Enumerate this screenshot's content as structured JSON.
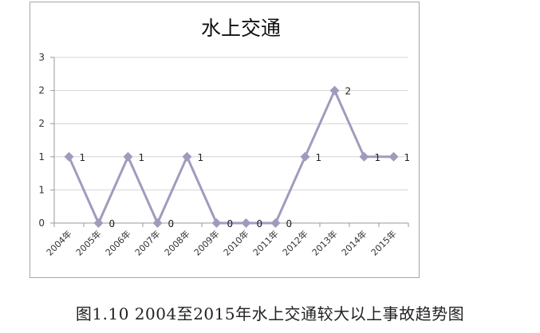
{
  "chart_data": {
    "type": "line",
    "title": "水上交通",
    "categories": [
      "2004年",
      "2005年",
      "2006年",
      "2007年",
      "2008年",
      "2009年",
      "2010年",
      "2011年",
      "2012年",
      "2013年",
      "2014年",
      "2015年"
    ],
    "values": [
      1,
      0,
      1,
      0,
      1,
      0,
      0,
      0,
      1,
      2,
      1,
      1
    ],
    "data_labels": [
      "1",
      "0",
      "1",
      "0",
      "1",
      "0",
      "0",
      "0",
      "1",
      "2",
      "1",
      "1"
    ],
    "ylim": [
      0,
      2.5
    ],
    "yticks": [
      0,
      0.5,
      1,
      1.5,
      2,
      2.5
    ],
    "ytick_labels": [
      "0",
      "1",
      "1",
      "2",
      "2",
      "3"
    ],
    "grid": true,
    "legend": "none",
    "marker": "diamond",
    "line_color": "#a09bbd",
    "xlabel": "",
    "ylabel": ""
  },
  "caption": "图1.10 2004至2015年水上交通较大以上事故趋势图"
}
